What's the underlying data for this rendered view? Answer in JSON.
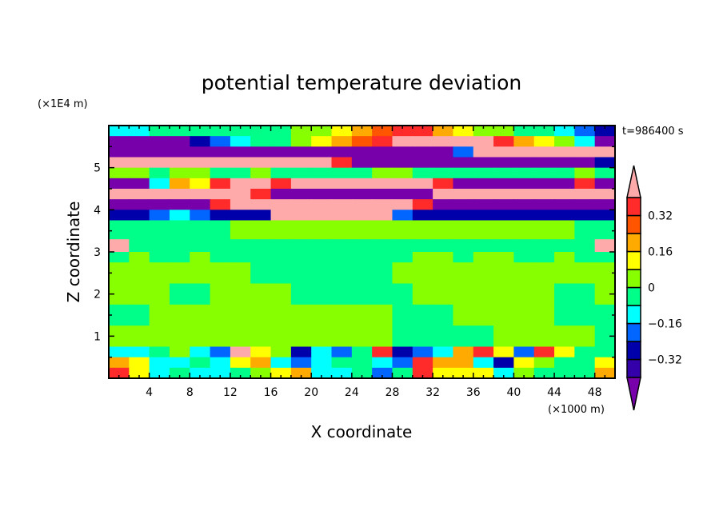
{
  "chart_data": {
    "type": "heatmap",
    "title": "potential temperature deviation",
    "xlabel": "X coordinate",
    "ylabel": "Z coordinate",
    "x_unit": "(×1000 m)",
    "y_unit": "(×1E4 m)",
    "time_label": "t=986400 s",
    "xlim": [
      0,
      50
    ],
    "ylim": [
      0,
      6
    ],
    "x_ticks": [
      4,
      8,
      12,
      16,
      20,
      24,
      28,
      32,
      36,
      40,
      44,
      48
    ],
    "x_tick_labels": [
      "4",
      "8",
      "12",
      "16",
      "20",
      "24",
      "28",
      "32",
      "36",
      "40",
      "44",
      "48"
    ],
    "y_ticks": [
      1,
      2,
      3,
      4,
      5
    ],
    "y_tick_labels": [
      "1",
      "2",
      "3",
      "4",
      "5"
    ],
    "colorbar": {
      "levels": [
        -0.4,
        -0.32,
        -0.24,
        -0.16,
        -0.08,
        0,
        0.08,
        0.16,
        0.24,
        0.32,
        0.4
      ],
      "labels": [
        {
          "value": 0.32,
          "text": "0.32"
        },
        {
          "value": 0.16,
          "text": "0.16"
        },
        {
          "value": 0,
          "text": "0"
        },
        {
          "value": -0.16,
          "text": "−0.16"
        },
        {
          "value": -0.32,
          "text": "−0.32"
        }
      ],
      "colors": [
        "#3300aa",
        "#0000aa",
        "#0066ff",
        "#00ffff",
        "#00ff88",
        "#88ff00",
        "#ffff00",
        "#ffaa00",
        "#ff5500",
        "#ff2a2a"
      ],
      "under_color": "#7700aa",
      "over_color": "#ffaaaa"
    },
    "x_step": 2,
    "rows": [
      {
        "z": [
          5.75,
          6.0
        ],
        "values": [
          -0.12,
          -0.12,
          -0.04,
          -0.04,
          -0.04,
          -0.04,
          -0.04,
          -0.04,
          -0.04,
          0.04,
          0.04,
          0.12,
          0.2,
          0.28,
          0.36,
          0.36,
          0.2,
          0.12,
          0.04,
          0.04,
          -0.04,
          -0.04,
          -0.12,
          -0.2,
          -0.28
        ]
      },
      {
        "z": [
          5.5,
          5.75
        ],
        "values": [
          -0.44,
          -0.44,
          -0.44,
          -0.44,
          -0.28,
          -0.2,
          -0.12,
          -0.04,
          -0.04,
          0.04,
          0.12,
          0.2,
          0.28,
          0.36,
          0.44,
          0.44,
          0.44,
          0.44,
          0.44,
          0.36,
          0.2,
          0.12,
          0.04,
          -0.12,
          -0.44
        ]
      },
      {
        "z": [
          5.25,
          5.5
        ],
        "values": [
          -0.44,
          -0.44,
          -0.44,
          -0.44,
          -0.44,
          -0.44,
          -0.44,
          -0.44,
          -0.44,
          -0.44,
          -0.44,
          -0.44,
          -0.44,
          -0.44,
          -0.44,
          -0.44,
          -0.44,
          -0.2,
          0.44,
          0.44,
          0.44,
          0.44,
          0.44,
          0.44,
          0.44
        ]
      },
      {
        "z": [
          5.0,
          5.25
        ],
        "values": [
          0.44,
          0.44,
          0.44,
          0.44,
          0.44,
          0.44,
          0.44,
          0.44,
          0.44,
          0.44,
          0.44,
          0.36,
          -0.44,
          -0.44,
          -0.44,
          -0.44,
          -0.44,
          -0.44,
          -0.44,
          -0.44,
          -0.44,
          -0.44,
          -0.44,
          -0.44,
          -0.28
        ]
      },
      {
        "z": [
          4.75,
          5.0
        ],
        "values": [
          0.04,
          0.04,
          -0.04,
          0.04,
          0.04,
          -0.04,
          -0.04,
          0.04,
          -0.04,
          -0.04,
          -0.04,
          -0.04,
          -0.04,
          0.04,
          0.04,
          -0.04,
          -0.04,
          -0.04,
          -0.04,
          -0.04,
          -0.04,
          -0.04,
          -0.04,
          0.04,
          -0.04
        ]
      },
      {
        "z": [
          4.5,
          4.75
        ],
        "values": [
          -0.44,
          -0.44,
          -0.12,
          0.2,
          0.12,
          0.36,
          0.44,
          0.44,
          0.36,
          0.44,
          0.44,
          0.44,
          0.44,
          0.44,
          0.44,
          0.44,
          0.36,
          -0.44,
          -0.44,
          -0.44,
          -0.44,
          -0.44,
          -0.44,
          0.36,
          -0.44
        ]
      },
      {
        "z": [
          4.25,
          4.5
        ],
        "values": [
          0.44,
          0.44,
          0.44,
          0.44,
          0.44,
          0.44,
          0.44,
          0.36,
          -0.44,
          -0.44,
          -0.44,
          -0.44,
          -0.44,
          -0.44,
          -0.44,
          -0.44,
          0.44,
          0.44,
          0.44,
          0.44,
          0.44,
          0.44,
          0.44,
          0.44,
          0.44
        ]
      },
      {
        "z": [
          4.0,
          4.25
        ],
        "values": [
          -0.44,
          -0.44,
          -0.44,
          -0.44,
          -0.44,
          0.36,
          0.44,
          0.44,
          0.44,
          0.44,
          0.44,
          0.44,
          0.44,
          0.44,
          0.44,
          0.36,
          -0.44,
          -0.44,
          -0.44,
          -0.44,
          -0.44,
          -0.44,
          -0.44,
          -0.44,
          -0.44
        ]
      },
      {
        "z": [
          3.75,
          4.0
        ],
        "values": [
          -0.28,
          -0.28,
          -0.2,
          -0.12,
          -0.2,
          -0.28,
          -0.28,
          -0.28,
          0.44,
          0.44,
          0.44,
          0.44,
          0.44,
          0.44,
          -0.2,
          -0.28,
          -0.28,
          -0.28,
          -0.28,
          -0.28,
          -0.28,
          -0.28,
          -0.28,
          -0.28,
          -0.28
        ]
      },
      {
        "z": [
          3.3,
          3.75
        ],
        "values": [
          -0.04,
          -0.04,
          -0.04,
          -0.04,
          -0.04,
          -0.04,
          0.04,
          0.04,
          0.04,
          0.04,
          0.04,
          0.04,
          0.04,
          0.04,
          0.04,
          0.04,
          0.04,
          0.04,
          0.04,
          0.04,
          0.04,
          0.04,
          0.04,
          -0.04,
          -0.04
        ]
      },
      {
        "z": [
          3.0,
          3.3
        ],
        "values": [
          0.44,
          -0.04,
          -0.04,
          -0.04,
          -0.04,
          -0.04,
          -0.04,
          -0.04,
          -0.04,
          -0.04,
          -0.04,
          -0.04,
          -0.04,
          -0.04,
          -0.04,
          -0.04,
          -0.04,
          -0.04,
          -0.04,
          -0.04,
          -0.04,
          -0.04,
          -0.04,
          -0.04,
          0.44
        ]
      },
      {
        "z": [
          2.75,
          3.0
        ],
        "values": [
          -0.04,
          0.04,
          -0.04,
          -0.04,
          0.04,
          -0.04,
          -0.04,
          -0.04,
          -0.04,
          -0.04,
          -0.04,
          -0.04,
          -0.04,
          -0.04,
          -0.04,
          0.04,
          0.04,
          -0.04,
          0.04,
          0.04,
          -0.04,
          -0.04,
          0.04,
          -0.04,
          -0.04
        ]
      },
      {
        "z": [
          2.25,
          2.75
        ],
        "values": [
          0.04,
          0.04,
          0.04,
          0.04,
          0.04,
          0.04,
          0.04,
          -0.04,
          -0.04,
          -0.04,
          -0.04,
          -0.04,
          -0.04,
          -0.04,
          0.04,
          0.04,
          0.04,
          0.04,
          0.04,
          0.04,
          0.04,
          0.04,
          0.04,
          0.04,
          0.04
        ]
      },
      {
        "z": [
          1.75,
          2.25
        ],
        "values": [
          0.04,
          0.04,
          0.04,
          -0.04,
          -0.04,
          0.04,
          0.04,
          0.04,
          0.04,
          -0.04,
          -0.04,
          -0.04,
          -0.04,
          -0.04,
          -0.04,
          0.04,
          0.04,
          0.04,
          0.04,
          0.04,
          0.04,
          0.04,
          -0.04,
          -0.04,
          0.04
        ]
      },
      {
        "z": [
          1.25,
          1.75
        ],
        "values": [
          -0.04,
          -0.04,
          0.04,
          0.04,
          0.04,
          0.04,
          0.04,
          0.04,
          0.04,
          0.04,
          0.04,
          0.04,
          0.04,
          0.04,
          -0.04,
          -0.04,
          -0.04,
          0.04,
          0.04,
          0.04,
          0.04,
          0.04,
          -0.04,
          -0.04,
          -0.04
        ]
      },
      {
        "z": [
          0.75,
          1.25
        ],
        "values": [
          0.04,
          0.04,
          0.04,
          0.04,
          0.04,
          0.04,
          0.04,
          0.04,
          0.04,
          0.04,
          0.04,
          0.04,
          0.04,
          0.04,
          -0.04,
          -0.04,
          -0.04,
          -0.04,
          -0.04,
          0.04,
          0.04,
          0.04,
          0.04,
          0.04,
          -0.04
        ]
      },
      {
        "z": [
          0.5,
          0.75
        ],
        "values": [
          -0.12,
          -0.12,
          -0.04,
          0.04,
          -0.12,
          -0.2,
          0.44,
          0.12,
          0.04,
          -0.28,
          -0.12,
          -0.2,
          -0.04,
          0.36,
          -0.28,
          -0.2,
          -0.12,
          0.2,
          0.36,
          0.12,
          -0.2,
          0.36,
          0.12,
          -0.04,
          -0.04
        ]
      },
      {
        "z": [
          0.25,
          0.5
        ],
        "values": [
          0.2,
          0.12,
          -0.12,
          -0.12,
          -0.04,
          -0.12,
          0.12,
          0.2,
          -0.12,
          -0.2,
          -0.12,
          -0.04,
          -0.04,
          -0.12,
          -0.2,
          0.36,
          0.2,
          0.2,
          -0.12,
          -0.28,
          0.12,
          0.04,
          -0.04,
          -0.04,
          0.12
        ]
      },
      {
        "z": [
          0.0,
          0.25
        ],
        "values": [
          0.36,
          0.12,
          -0.12,
          -0.04,
          -0.12,
          -0.12,
          -0.04,
          0.04,
          0.12,
          0.2,
          -0.12,
          -0.12,
          -0.04,
          -0.2,
          -0.04,
          0.36,
          0.12,
          0.12,
          0.12,
          -0.12,
          0.04,
          -0.04,
          -0.04,
          -0.04,
          0.2
        ]
      }
    ]
  }
}
